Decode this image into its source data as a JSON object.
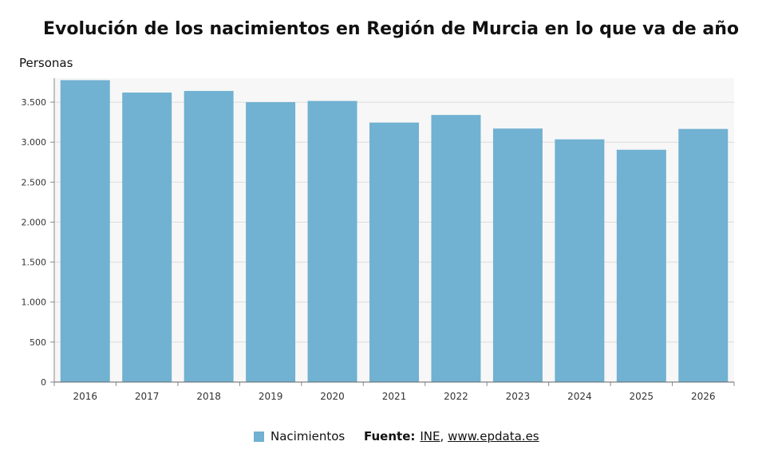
{
  "title": "Evolución de los nacimientos en Región de Murcia en lo que va de año",
  "unit_label": "Personas",
  "legend": {
    "series_label": "Nacimientos"
  },
  "source": {
    "label": "Fuente:",
    "links": [
      "INE",
      "www.epdata.es"
    ],
    "separator": ","
  },
  "colors": {
    "bar": "#71b1d1",
    "plot_bg": "#f7f7f7",
    "grid": "#dcdcdc"
  },
  "chart_data": {
    "type": "bar",
    "title": "Evolución de los nacimientos en Región de Murcia en lo que va de año",
    "ylabel": "Personas",
    "xlabel": "",
    "categories": [
      "2016",
      "2017",
      "2018",
      "2019",
      "2020",
      "2021",
      "2022",
      "2023",
      "2024",
      "2025",
      "2026"
    ],
    "series": [
      {
        "name": "Nacimientos",
        "values": [
          3775,
          3620,
          3640,
          3500,
          3515,
          3245,
          3340,
          3170,
          3035,
          2905,
          3165
        ]
      }
    ],
    "ylim": [
      0,
      3800
    ],
    "yticks": [
      0,
      500,
      1000,
      1500,
      2000,
      2500,
      3000,
      3500
    ],
    "ytick_labels": [
      "0",
      "500",
      "1.000",
      "1.500",
      "2.000",
      "2.500",
      "3.000",
      "3.500"
    ],
    "grid": true,
    "legend_position": "bottom"
  }
}
